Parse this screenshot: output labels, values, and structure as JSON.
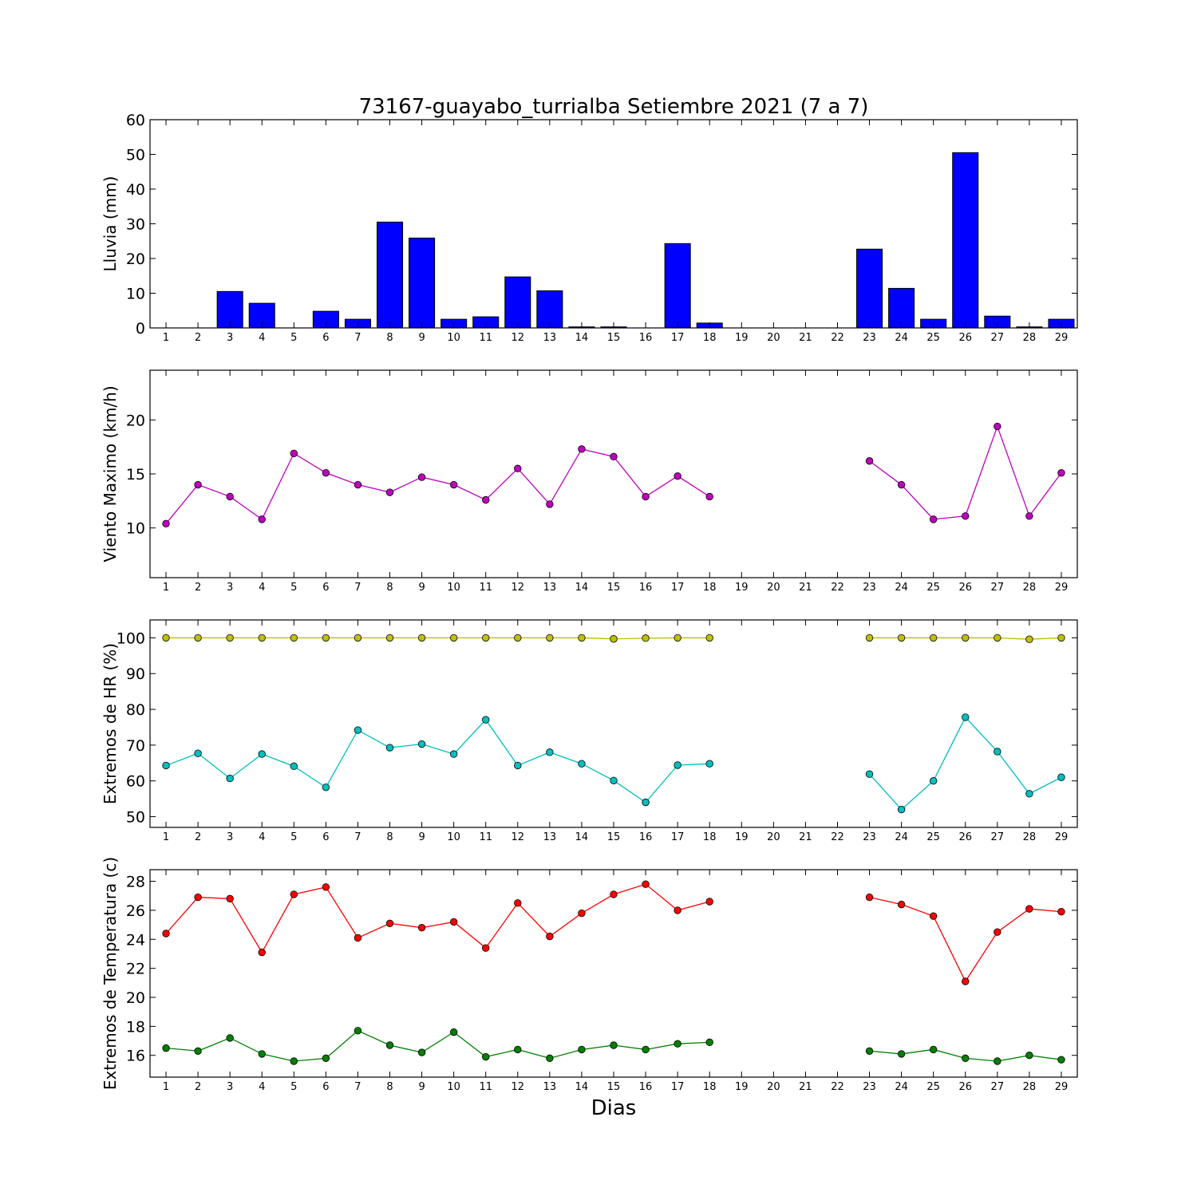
{
  "figure": {
    "title": "73167-guayabo_turrialba Setiembre 2021  (7 a 7)",
    "xlabel": "Dias"
  },
  "chart_data": [
    {
      "type": "bar",
      "ylabel": "Lluvia (mm)",
      "ylim": [
        0,
        60
      ],
      "yticks": [
        0,
        10,
        20,
        30,
        40,
        50,
        60
      ],
      "xlim": [
        0.5,
        29.5
      ],
      "categories": [
        1,
        2,
        3,
        4,
        5,
        6,
        7,
        8,
        9,
        10,
        11,
        12,
        13,
        14,
        15,
        16,
        17,
        18,
        19,
        20,
        21,
        22,
        23,
        24,
        25,
        26,
        27,
        28,
        29
      ],
      "color": "#0000ff",
      "series": [
        {
          "values": [
            0,
            0,
            10.5,
            7.1,
            0,
            4.8,
            2.5,
            30.5,
            25.9,
            2.5,
            3.2,
            14.7,
            10.7,
            0.3,
            0.3,
            0,
            24.3,
            1.4,
            null,
            null,
            null,
            null,
            22.7,
            11.4,
            2.5,
            50.5,
            3.4,
            0.3,
            2.5
          ],
          "color": "#0000ff"
        }
      ],
      "grid": false
    },
    {
      "type": "line",
      "ylabel": "Viento Maximo (km/h)",
      "ylim": [
        5.4,
        24.6
      ],
      "yticks": [
        10,
        15,
        20
      ],
      "xlim": [
        0.5,
        29.5
      ],
      "x": [
        1,
        2,
        3,
        4,
        5,
        6,
        7,
        8,
        9,
        10,
        11,
        12,
        13,
        14,
        15,
        16,
        17,
        18,
        19,
        20,
        21,
        22,
        23,
        24,
        25,
        26,
        27,
        28,
        29
      ],
      "series": [
        {
          "color": "#bf00bf",
          "values": [
            10.4,
            14.0,
            12.9,
            10.8,
            16.9,
            15.1,
            14.0,
            13.3,
            14.7,
            14.0,
            12.6,
            15.5,
            12.2,
            17.3,
            16.6,
            12.9,
            14.8,
            12.9,
            null,
            null,
            null,
            null,
            16.2,
            14.0,
            10.8,
            11.1,
            19.4,
            11.1,
            15.1
          ]
        }
      ],
      "grid": false
    },
    {
      "type": "line",
      "ylabel": "Extremos de HR (%)",
      "ylim": [
        47,
        105
      ],
      "yticks": [
        50,
        60,
        70,
        80,
        90,
        100
      ],
      "xlim": [
        0.5,
        29.5
      ],
      "x": [
        1,
        2,
        3,
        4,
        5,
        6,
        7,
        8,
        9,
        10,
        11,
        12,
        13,
        14,
        15,
        16,
        17,
        18,
        19,
        20,
        21,
        22,
        23,
        24,
        25,
        26,
        27,
        28,
        29
      ],
      "series": [
        {
          "color": "#bfbf00",
          "values": [
            100,
            100,
            100,
            100,
            100,
            100,
            100,
            100,
            100,
            100,
            100,
            100,
            100,
            100,
            99.7,
            99.9,
            100,
            100,
            null,
            null,
            null,
            null,
            100,
            100,
            100,
            100,
            100,
            99.6,
            100
          ]
        },
        {
          "color": "#00bfbf",
          "values": [
            64.3,
            67.7,
            60.7,
            67.5,
            64.1,
            58.2,
            74.2,
            69.3,
            70.3,
            67.5,
            77.1,
            64.3,
            68.0,
            64.8,
            60.1,
            54.0,
            64.4,
            64.8,
            null,
            null,
            null,
            null,
            61.9,
            52.0,
            60.0,
            77.8,
            68.2,
            56.4,
            61.0
          ]
        }
      ],
      "grid": false
    },
    {
      "type": "line",
      "ylabel": "Extremos de Temperatura (c)",
      "ylim": [
        14.5,
        28.8
      ],
      "yticks": [
        16,
        18,
        20,
        22,
        24,
        26,
        28
      ],
      "xlim": [
        0.5,
        29.5
      ],
      "x": [
        1,
        2,
        3,
        4,
        5,
        6,
        7,
        8,
        9,
        10,
        11,
        12,
        13,
        14,
        15,
        16,
        17,
        18,
        19,
        20,
        21,
        22,
        23,
        24,
        25,
        26,
        27,
        28,
        29
      ],
      "series": [
        {
          "color": "#ff0000",
          "values": [
            24.4,
            26.9,
            26.8,
            23.1,
            27.1,
            27.6,
            24.1,
            25.1,
            24.8,
            25.2,
            23.4,
            26.5,
            24.2,
            25.8,
            27.1,
            27.8,
            26.0,
            26.6,
            null,
            null,
            null,
            null,
            26.9,
            26.4,
            25.6,
            21.1,
            24.5,
            26.1,
            25.9
          ]
        },
        {
          "color": "#008000",
          "values": [
            16.5,
            16.3,
            17.2,
            16.1,
            15.6,
            15.8,
            17.7,
            16.7,
            16.2,
            17.6,
            15.9,
            16.4,
            15.8,
            16.4,
            16.7,
            16.4,
            16.8,
            16.9,
            null,
            null,
            null,
            null,
            16.3,
            16.1,
            16.4,
            15.8,
            15.6,
            16.0,
            15.7
          ]
        }
      ],
      "grid": false
    }
  ]
}
